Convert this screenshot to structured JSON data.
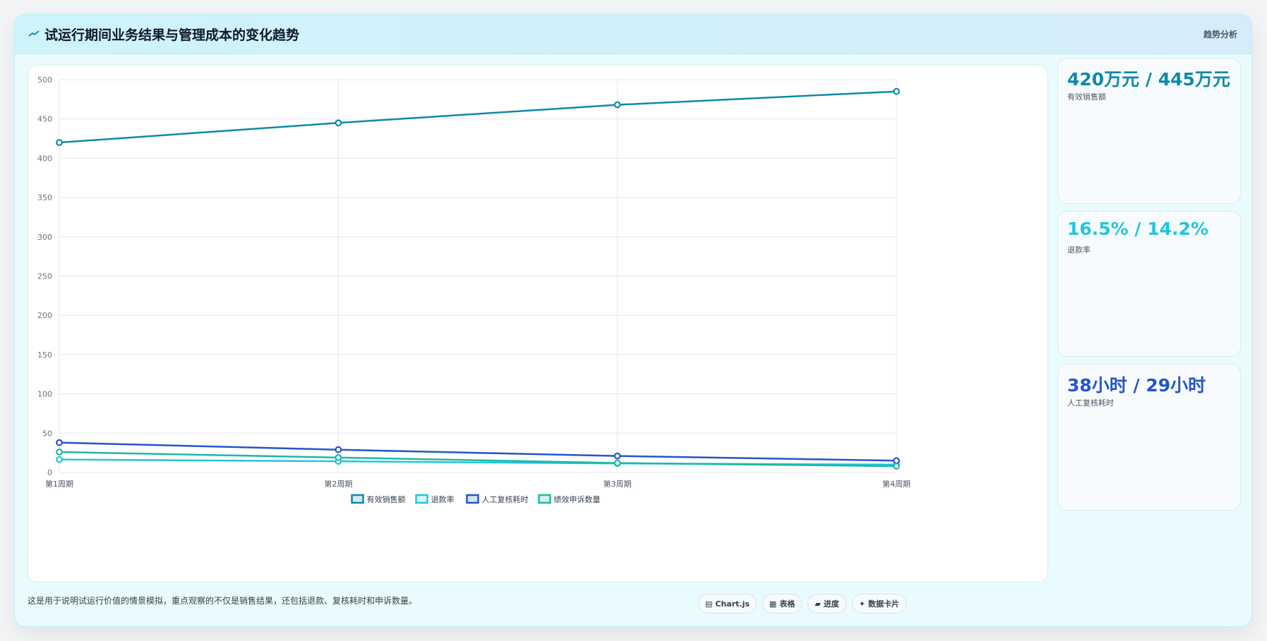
{
  "header": {
    "icon": "trend-line-icon",
    "title": "试运行期间业务结果与管理成本的变化趋势",
    "tag": "趋势分析"
  },
  "stats": [
    {
      "value": "420万元 / 445万元",
      "label": "有效销售额",
      "color": "#0e8aa6"
    },
    {
      "value": "16.5% / 14.2%",
      "label": "退款率",
      "color": "#22c5dc"
    },
    {
      "value": "38小时 / 29小时",
      "label": "人工复核耗时",
      "color": "#2456c9"
    }
  ],
  "footnote": "这是用于说明试运行价值的情景模拟，重点观察的不仅是销售结果，还包括退款、复核耗时和申诉数量。",
  "pills": [
    {
      "icon": "chart-icon",
      "label": "Chart.js"
    },
    {
      "icon": "table-icon",
      "label": "表格"
    },
    {
      "icon": "progress-icon",
      "label": "进度"
    },
    {
      "icon": "sparkle-icon",
      "label": "数据卡片"
    }
  ],
  "chart_data": {
    "type": "line",
    "categories": [
      "第1周期",
      "第2周期",
      "第3周期",
      "第4周期"
    ],
    "ylim": [
      0,
      500
    ],
    "yticks": [
      0,
      50,
      100,
      150,
      200,
      250,
      300,
      350,
      400,
      450,
      500
    ],
    "grid": true,
    "legend_position": "bottom",
    "series": [
      {
        "name": "有效销售额",
        "values": [
          420,
          445,
          468,
          485
        ],
        "color": "#0e8aa6"
      },
      {
        "name": "退款率",
        "values": [
          16.5,
          14.2,
          11.5,
          10
        ],
        "color": "#22c5dc"
      },
      {
        "name": "人工复核耗时",
        "values": [
          38,
          29,
          21,
          15
        ],
        "color": "#2456c9"
      },
      {
        "name": "绩效申诉数量",
        "values": [
          26,
          19,
          12,
          8
        ],
        "color": "#1db8a5"
      }
    ]
  }
}
